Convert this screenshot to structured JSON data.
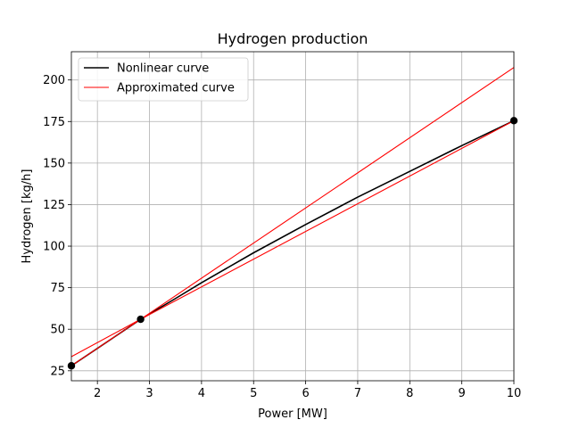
{
  "chart_data": {
    "type": "line",
    "title": "Hydrogen production",
    "xlabel": "Power [MW]",
    "ylabel": "Hydrogen [kg/h]",
    "xlim": [
      1.5,
      10
    ],
    "ylim": [
      19,
      217
    ],
    "xticks": [
      2,
      3,
      4,
      5,
      6,
      7,
      8,
      9,
      10
    ],
    "yticks": [
      25,
      50,
      75,
      100,
      125,
      150,
      175,
      200
    ],
    "grid": true,
    "legend": {
      "placement": "upper-left",
      "entries": [
        {
          "label": "Nonlinear curve",
          "color": "#000000"
        },
        {
          "label": "Approximated curve",
          "color": "#ff0000"
        }
      ]
    },
    "series": [
      {
        "name": "Nonlinear curve",
        "color": "#000000",
        "style": "line",
        "x": [
          1.5,
          2.0,
          2.5,
          2.83,
          3.5,
          4.0,
          5.0,
          6.0,
          7.0,
          8.0,
          9.0,
          10.0
        ],
        "y": [
          28,
          38.5,
          49,
          56,
          68.5,
          78,
          96,
          113,
          129.5,
          145,
          160.5,
          175.5
        ]
      },
      {
        "name": "Approximated curve",
        "color": "#ff0000",
        "style": "line",
        "x": [
          1.5,
          2.83,
          10.0
        ],
        "y": [
          28,
          56,
          207.5
        ]
      },
      {
        "name": "Approximated curve",
        "color": "#ff0000",
        "style": "line",
        "x": [
          1.5,
          2.83,
          10.0
        ],
        "y": [
          33.5,
          56,
          175.5
        ]
      },
      {
        "name": "Breakpoints",
        "color": "#000000",
        "style": "markers",
        "x": [
          1.5,
          2.83,
          10.0
        ],
        "y": [
          28,
          56,
          175.5
        ]
      }
    ]
  }
}
